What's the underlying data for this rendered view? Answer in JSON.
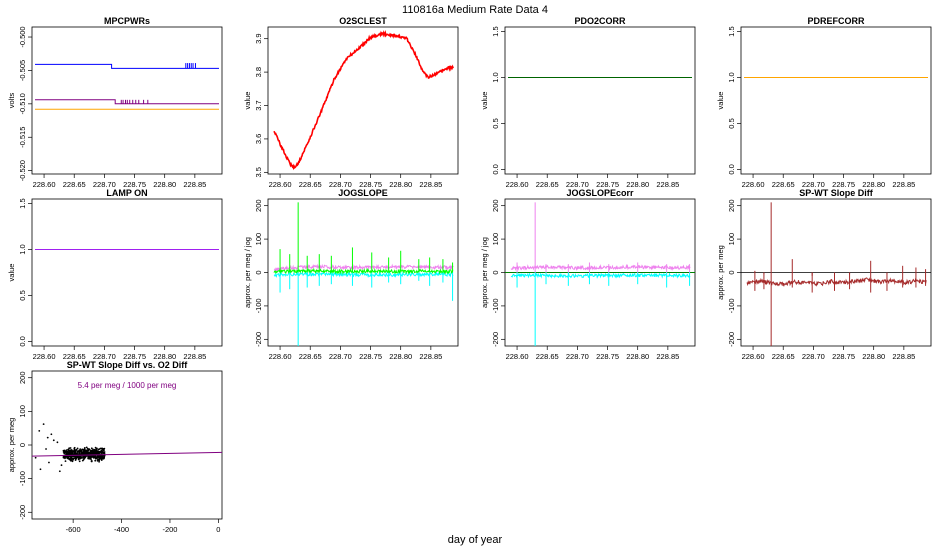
{
  "figure": {
    "title": "110816a   Medium Rate Data 4",
    "xlabel": "day of year"
  },
  "chart_data": [
    {
      "type": "line",
      "title": "MPCPWRs",
      "ylabel": "volts",
      "xlim": [
        228.58,
        228.895
      ],
      "ylim": [
        -0.5205,
        -0.4985
      ],
      "xticks": [
        228.6,
        228.65,
        228.7,
        228.75,
        228.8,
        228.85
      ],
      "xtick_labels": [
        "228.60",
        "228.65",
        "228.70",
        "228.75",
        "228.80",
        "228.85"
      ],
      "yticks": [
        -0.52,
        -0.515,
        -0.51,
        -0.505,
        -0.5
      ],
      "ytick_labels": [
        "-0.520",
        "-0.515",
        "-0.510",
        "-0.505",
        "-0.500"
      ],
      "series": [
        {
          "color": "#0000ff",
          "x": [
            228.585,
            228.712,
            228.712,
            228.89
          ],
          "y": [
            -0.5041,
            -0.5041,
            -0.5047,
            -0.5047
          ],
          "spikes": {
            "x": [
              228.835,
              228.838,
              228.841,
              228.844,
              228.847,
              228.851
            ],
            "y0": -0.5047,
            "y1": -0.5039
          }
        },
        {
          "color": "#800080",
          "x": [
            228.585,
            228.718,
            228.718,
            228.89
          ],
          "y": [
            -0.5094,
            -0.5094,
            -0.51,
            -0.51
          ],
          "spikes": {
            "x": [
              228.728,
              228.731,
              228.735,
              228.738,
              228.742,
              228.747,
              228.752,
              228.757,
              228.765,
              228.772
            ],
            "y0": -0.51,
            "y1": -0.5094
          }
        },
        {
          "color": "#ffa500",
          "x": [
            228.585,
            228.89
          ],
          "y": [
            -0.5108,
            -0.5108
          ]
        }
      ]
    },
    {
      "type": "line",
      "title": "O2SCLEST",
      "ylabel": "value",
      "xlim": [
        228.58,
        228.895
      ],
      "ylim": [
        3.495,
        3.935
      ],
      "xticks": [
        228.6,
        228.65,
        228.7,
        228.75,
        228.8,
        228.85
      ],
      "xtick_labels": [
        "228.60",
        "228.65",
        "228.70",
        "228.75",
        "228.80",
        "228.85"
      ],
      "yticks": [
        3.5,
        3.6,
        3.7,
        3.8,
        3.9
      ],
      "ytick_labels": [
        "3.5",
        "3.6",
        "3.7",
        "3.8",
        "3.9"
      ],
      "series": [
        {
          "color": "#ff0000",
          "x": [
            228.59,
            228.6,
            228.615,
            228.625,
            228.635,
            228.65,
            228.67,
            228.69,
            228.71,
            228.73,
            228.75,
            228.77,
            228.79,
            228.81,
            228.825,
            228.835,
            228.845,
            228.855,
            228.865,
            228.875,
            228.887
          ],
          "y": [
            3.625,
            3.585,
            3.53,
            3.512,
            3.545,
            3.605,
            3.69,
            3.78,
            3.84,
            3.87,
            3.905,
            3.915,
            3.91,
            3.9,
            3.85,
            3.81,
            3.785,
            3.79,
            3.8,
            3.81,
            3.815
          ]
        }
      ]
    },
    {
      "type": "line",
      "title": "PDO2CORR",
      "ylabel": "value",
      "xlim": [
        228.58,
        228.895
      ],
      "ylim": [
        -0.05,
        1.55
      ],
      "xticks": [
        228.6,
        228.65,
        228.7,
        228.75,
        228.8,
        228.85
      ],
      "xtick_labels": [
        "228.60",
        "228.65",
        "228.70",
        "228.75",
        "228.80",
        "228.85"
      ],
      "yticks": [
        0.0,
        0.5,
        1.0,
        1.5
      ],
      "ytick_labels": [
        "0.0",
        "0.5",
        "1.0",
        "1.5"
      ],
      "series": [
        {
          "color": "#006400",
          "x": [
            228.585,
            228.89
          ],
          "y": [
            1.0,
            1.0
          ]
        }
      ]
    },
    {
      "type": "line",
      "title": "PDREFCORR",
      "ylabel": "value",
      "xlim": [
        228.58,
        228.895
      ],
      "ylim": [
        -0.05,
        1.55
      ],
      "xticks": [
        228.6,
        228.65,
        228.7,
        228.75,
        228.8,
        228.85
      ],
      "xtick_labels": [
        "228.60",
        "228.65",
        "228.70",
        "228.75",
        "228.80",
        "228.85"
      ],
      "yticks": [
        0.0,
        0.5,
        1.0,
        1.5
      ],
      "ytick_labels": [
        "0.0",
        "0.5",
        "1.0",
        "1.5"
      ],
      "series": [
        {
          "color": "#ffa500",
          "x": [
            228.585,
            228.89
          ],
          "y": [
            1.0,
            1.0
          ]
        }
      ]
    },
    {
      "type": "line",
      "title": "LAMP ON",
      "ylabel": "value",
      "xlim": [
        228.58,
        228.895
      ],
      "ylim": [
        -0.05,
        1.55
      ],
      "xticks": [
        228.6,
        228.65,
        228.7,
        228.75,
        228.8,
        228.85
      ],
      "xtick_labels": [
        "228.60",
        "228.65",
        "228.70",
        "228.75",
        "228.80",
        "228.85"
      ],
      "yticks": [
        0.0,
        0.5,
        1.0,
        1.5
      ],
      "ytick_labels": [
        "0.0",
        "0.5",
        "1.0",
        "1.5"
      ],
      "series": [
        {
          "color": "#a020f0",
          "x": [
            228.585,
            228.89
          ],
          "y": [
            1.0,
            1.0
          ]
        }
      ]
    },
    {
      "type": "line",
      "title": "JOGSLOPE",
      "ylabel": "approx. per meg / jog",
      "xlim": [
        228.58,
        228.895
      ],
      "ylim": [
        -220,
        220
      ],
      "xticks": [
        228.6,
        228.65,
        228.7,
        228.75,
        228.8,
        228.85
      ],
      "xtick_labels": [
        "228.60",
        "228.65",
        "228.70",
        "228.75",
        "228.80",
        "228.85"
      ],
      "yticks": [
        -200,
        -100,
        0,
        100,
        200
      ],
      "ytick_labels": [
        "-200",
        "-100",
        "0",
        "100",
        "200"
      ],
      "series": [
        {
          "color": "#ee82ee",
          "x": [
            228.59,
            228.62,
            228.65,
            228.7,
            228.75,
            228.8,
            228.85,
            228.887
          ],
          "y": [
            8,
            14,
            18,
            16,
            15,
            17,
            16,
            15
          ]
        },
        {
          "color": "#00ffff",
          "x": [
            228.59,
            228.62,
            228.65,
            228.7,
            228.75,
            228.8,
            228.85,
            228.887
          ],
          "y": [
            -8,
            -6,
            -5,
            -6,
            -7,
            -6,
            -5,
            -6
          ]
        },
        {
          "color": "#00ff00",
          "x": [
            228.59,
            228.62,
            228.65,
            228.7,
            228.75,
            228.8,
            228.85,
            228.887
          ],
          "y": [
            2,
            4,
            5,
            3,
            4,
            3,
            4,
            3
          ]
        }
      ],
      "spikes": [
        {
          "x": 228.6,
          "lo": -60,
          "hi": 70
        },
        {
          "x": 228.616,
          "lo": -50,
          "hi": 55
        },
        {
          "x": 228.63,
          "lo": -220,
          "hi": 210
        },
        {
          "x": 228.645,
          "lo": -45,
          "hi": 50
        },
        {
          "x": 228.665,
          "lo": -40,
          "hi": 55
        },
        {
          "x": 228.685,
          "lo": -35,
          "hi": 50
        },
        {
          "x": 228.72,
          "lo": -40,
          "hi": 75
        },
        {
          "x": 228.752,
          "lo": -45,
          "hi": 60
        },
        {
          "x": 228.78,
          "lo": -30,
          "hi": 45
        },
        {
          "x": 228.8,
          "lo": -35,
          "hi": 65
        },
        {
          "x": 228.83,
          "lo": -25,
          "hi": 40
        },
        {
          "x": 228.848,
          "lo": -40,
          "hi": 45
        },
        {
          "x": 228.87,
          "lo": -30,
          "hi": 40
        },
        {
          "x": 228.886,
          "lo": -85,
          "hi": 30
        }
      ]
    },
    {
      "type": "line",
      "title": "JOGSLOPEcorr",
      "ylabel": "approx. per meg / jog",
      "xlim": [
        228.58,
        228.895
      ],
      "ylim": [
        -220,
        220
      ],
      "xticks": [
        228.6,
        228.65,
        228.7,
        228.75,
        228.8,
        228.85
      ],
      "xtick_labels": [
        "228.60",
        "228.65",
        "228.70",
        "228.75",
        "228.80",
        "228.85"
      ],
      "yticks": [
        -200,
        -100,
        0,
        100,
        200
      ],
      "ytick_labels": [
        "-200",
        "-100",
        "0",
        "100",
        "200"
      ],
      "series": [
        {
          "color": "#ee82ee",
          "x": [
            228.59,
            228.62,
            228.65,
            228.7,
            228.75,
            228.8,
            228.85,
            228.887
          ],
          "y": [
            12,
            15,
            16,
            14,
            15,
            16,
            15,
            14
          ]
        },
        {
          "color": "#00ffff",
          "x": [
            228.59,
            228.62,
            228.65,
            228.7,
            228.75,
            228.8,
            228.85,
            228.887
          ],
          "y": [
            -10,
            -8,
            -9,
            -10,
            -9,
            -8,
            -9,
            -10
          ]
        },
        {
          "color": "#008000",
          "x": [
            228.58,
            228.895
          ],
          "y": [
            0,
            0
          ]
        }
      ],
      "spikes": [
        {
          "x": 228.6,
          "lo": -45,
          "hi": 30
        },
        {
          "x": 228.63,
          "lo": -220,
          "hi": 210
        },
        {
          "x": 228.648,
          "lo": -35,
          "hi": 25
        },
        {
          "x": 228.685,
          "lo": -40,
          "hi": 25
        },
        {
          "x": 228.72,
          "lo": -35,
          "hi": 30
        },
        {
          "x": 228.752,
          "lo": -40,
          "hi": 25
        },
        {
          "x": 228.8,
          "lo": -35,
          "hi": 30
        },
        {
          "x": 228.848,
          "lo": -45,
          "hi": 25
        },
        {
          "x": 228.886,
          "lo": -40,
          "hi": 25
        }
      ]
    },
    {
      "type": "line",
      "title": "SP-WT Slope Diff",
      "ylabel": "approx. per meg",
      "xlim": [
        228.58,
        228.895
      ],
      "ylim": [
        -220,
        220
      ],
      "xticks": [
        228.6,
        228.65,
        228.7,
        228.75,
        228.8,
        228.85
      ],
      "xtick_labels": [
        "228.60",
        "228.65",
        "228.70",
        "228.75",
        "228.80",
        "228.85"
      ],
      "yticks": [
        -200,
        -100,
        0,
        100,
        200
      ],
      "ytick_labels": [
        "-200",
        "-100",
        "0",
        "100",
        "200"
      ],
      "hline": 0,
      "series": [
        {
          "color": "#a52a2a",
          "x": [
            228.59,
            228.61,
            228.63,
            228.65,
            228.67,
            228.69,
            228.71,
            228.73,
            228.75,
            228.77,
            228.79,
            228.81,
            228.83,
            228.85,
            228.87,
            228.887
          ],
          "y": [
            -30,
            -26,
            -32,
            -35,
            -28,
            -30,
            -34,
            -27,
            -30,
            -25,
            -22,
            -28,
            -24,
            -30,
            -26,
            -28
          ]
        }
      ],
      "spikes": [
        {
          "x": 228.603,
          "lo": -55,
          "hi": 5
        },
        {
          "x": 228.618,
          "lo": -50,
          "hi": -5
        },
        {
          "x": 228.63,
          "lo": -220,
          "hi": 210
        },
        {
          "x": 228.665,
          "lo": -45,
          "hi": 40
        },
        {
          "x": 228.698,
          "lo": -60,
          "hi": -10
        },
        {
          "x": 228.735,
          "lo": -55,
          "hi": 0
        },
        {
          "x": 228.76,
          "lo": -50,
          "hi": -5
        },
        {
          "x": 228.795,
          "lo": -60,
          "hi": 35
        },
        {
          "x": 228.822,
          "lo": -55,
          "hi": -5
        },
        {
          "x": 228.848,
          "lo": -45,
          "hi": 20
        },
        {
          "x": 228.87,
          "lo": -45,
          "hi": 15
        },
        {
          "x": 228.886,
          "lo": -40,
          "hi": 10
        }
      ]
    },
    {
      "type": "scatter",
      "title": "SP-WT Slope Diff vs. O2 Diff",
      "annotation": "5.4 per meg / 1000 per meg",
      "ylabel": "approx. per meg",
      "xlim": [
        -770,
        15
      ],
      "ylim": [
        -220,
        220
      ],
      "xticks": [
        -600,
        -400,
        -200,
        0
      ],
      "xtick_labels": [
        "-600",
        "-400",
        "-200",
        "0"
      ],
      "yticks": [
        -200,
        -100,
        0,
        100,
        200
      ],
      "ytick_labels": [
        "-200",
        "-100",
        "0",
        "100",
        "200"
      ],
      "cluster": {
        "x_range": [
          -640,
          -470
        ],
        "y_center": -28,
        "y_spread": 16
      },
      "outliers": {
        "x": [
          -740,
          -722,
          -705,
          -712,
          -690,
          -665,
          -648,
          -700,
          -755,
          -735,
          -680,
          -655
        ],
        "y": [
          42,
          62,
          22,
          -12,
          32,
          8,
          -60,
          -52,
          -38,
          -72,
          14,
          -78
        ]
      },
      "fit_line": {
        "color": "#800080",
        "x": [
          -770,
          15
        ],
        "y": [
          -33,
          -22
        ]
      }
    }
  ]
}
